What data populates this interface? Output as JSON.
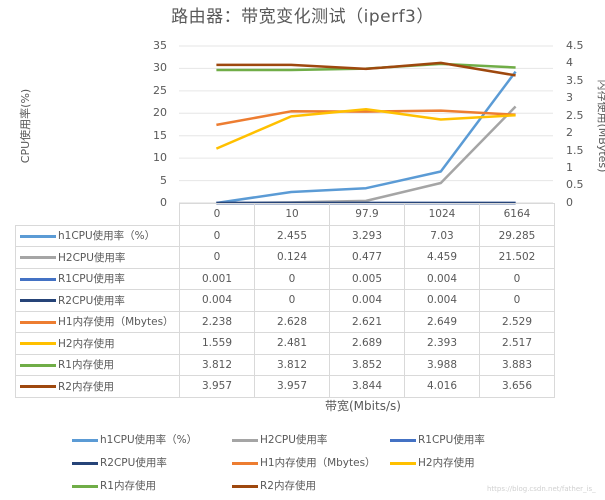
{
  "title": "路由器：带宽变化测试（iperf3）",
  "axes": {
    "left_title": "CPU使用率(%)",
    "right_title": "内存使用(MBytes)",
    "x_title": "带宽(Mbits/s)",
    "left_ticks": [
      "35",
      "30",
      "25",
      "20",
      "15",
      "10",
      "5",
      "0"
    ],
    "right_ticks": [
      "4.5",
      "4",
      "3.5",
      "3",
      "2.5",
      "2",
      "1.5",
      "1",
      "0.5",
      "0"
    ]
  },
  "table": {
    "header": [
      "0",
      "10",
      "97.9",
      "1024",
      "6164"
    ],
    "rows": [
      {
        "label": "h1CPU使用率（%）",
        "color": "#5B9BD5",
        "values": [
          "0",
          "2.455",
          "3.293",
          "7.03",
          "29.285"
        ]
      },
      {
        "label": "H2CPU使用率",
        "color": "#A5A5A5",
        "values": [
          "0",
          "0.124",
          "0.477",
          "4.459",
          "21.502"
        ]
      },
      {
        "label": "R1CPU使用率",
        "color": "#4472C4",
        "values": [
          "0.001",
          "0",
          "0.005",
          "0.004",
          "0"
        ]
      },
      {
        "label": "R2CPU使用率",
        "color": "#264478",
        "values": [
          "0.004",
          "0",
          "0.004",
          "0.004",
          "0"
        ]
      },
      {
        "label": "H1内存使用（Mbytes）",
        "color": "#ED7D31",
        "values": [
          "2.238",
          "2.628",
          "2.621",
          "2.649",
          "2.529"
        ]
      },
      {
        "label": "H2内存使用",
        "color": "#FFC000",
        "values": [
          "1.559",
          "2.481",
          "2.689",
          "2.393",
          "2.517"
        ]
      },
      {
        "label": "R1内存使用",
        "color": "#70AD47",
        "values": [
          "3.812",
          "3.812",
          "3.852",
          "3.988",
          "3.883"
        ]
      },
      {
        "label": "R2内存使用",
        "color": "#9E480E",
        "values": [
          "3.957",
          "3.957",
          "3.844",
          "4.016",
          "3.656"
        ]
      }
    ]
  },
  "legend": [
    {
      "label": "h1CPU使用率（%）",
      "color": "#5B9BD5"
    },
    {
      "label": "H2CPU使用率",
      "color": "#A5A5A5"
    },
    {
      "label": "R1CPU使用率",
      "color": "#4472C4"
    },
    {
      "label": "R2CPU使用率",
      "color": "#264478"
    },
    {
      "label": "H1内存使用（Mbytes）",
      "color": "#ED7D31"
    },
    {
      "label": "H2内存使用",
      "color": "#FFC000"
    },
    {
      "label": "R1内存使用",
      "color": "#70AD47"
    },
    {
      "label": "R2内存使用",
      "color": "#9E480E"
    }
  ],
  "watermark": "https://blog.csdn.net/father_is_",
  "chart_data": {
    "type": "line",
    "title": "路由器：带宽变化测试（iperf3）",
    "xlabel": "带宽(Mbits/s)",
    "ylabel": "CPU使用率(%)",
    "y2label": "内存使用(MBytes)",
    "categories": [
      "0",
      "10",
      "97.9",
      "1024",
      "6164"
    ],
    "ylim": [
      0,
      35
    ],
    "y2lim": [
      0,
      4.5
    ],
    "grid": true,
    "legend_position": "bottom",
    "series": [
      {
        "name": "h1CPU使用率（%）",
        "axis": "left",
        "color": "#5B9BD5",
        "values": [
          0,
          2.455,
          3.293,
          7.03,
          29.285
        ]
      },
      {
        "name": "H2CPU使用率",
        "axis": "left",
        "color": "#A5A5A5",
        "values": [
          0,
          0.124,
          0.477,
          4.459,
          21.502
        ]
      },
      {
        "name": "R1CPU使用率",
        "axis": "left",
        "color": "#4472C4",
        "values": [
          0.001,
          0,
          0.005,
          0.004,
          0
        ]
      },
      {
        "name": "R2CPU使用率",
        "axis": "left",
        "color": "#264478",
        "values": [
          0.004,
          0,
          0.004,
          0.004,
          0
        ]
      },
      {
        "name": "H1内存使用（Mbytes）",
        "axis": "right",
        "color": "#ED7D31",
        "values": [
          2.238,
          2.628,
          2.621,
          2.649,
          2.529
        ]
      },
      {
        "name": "H2内存使用",
        "axis": "right",
        "color": "#FFC000",
        "values": [
          1.559,
          2.481,
          2.689,
          2.393,
          2.517
        ]
      },
      {
        "name": "R1内存使用",
        "axis": "right",
        "color": "#70AD47",
        "values": [
          3.812,
          3.812,
          3.852,
          3.988,
          3.883
        ]
      },
      {
        "name": "R2内存使用",
        "axis": "right",
        "color": "#9E480E",
        "values": [
          3.957,
          3.957,
          3.844,
          4.016,
          3.656
        ]
      }
    ]
  }
}
